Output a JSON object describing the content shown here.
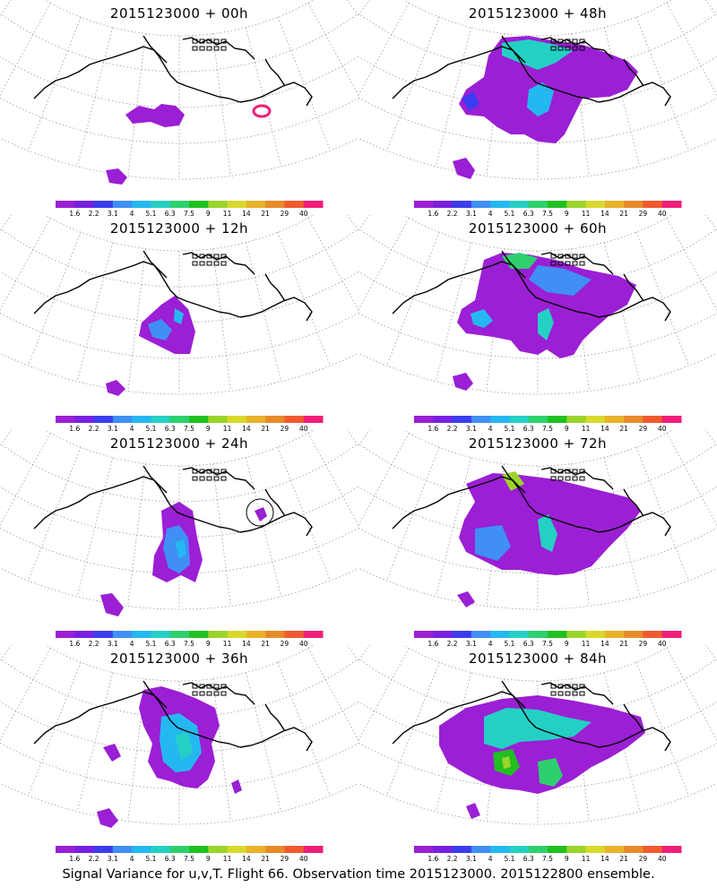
{
  "panels": [
    {
      "title": "2015123000 + 00h"
    },
    {
      "title": "2015123000 + 48h"
    },
    {
      "title": "2015123000 + 12h"
    },
    {
      "title": "2015123000 + 60h"
    },
    {
      "title": "2015123000 + 24h"
    },
    {
      "title": "2015123000 + 72h"
    },
    {
      "title": "2015123000 + 36h"
    },
    {
      "title": "2015123000 + 84h"
    }
  ],
  "colorbar": {
    "labels": [
      "1.6",
      "2.2",
      "3.1",
      "4",
      "5.1",
      "6.3",
      "7.5",
      "9",
      "11",
      "14",
      "21",
      "29",
      "40"
    ],
    "colors": [
      "#9b1fd4",
      "#7820e0",
      "#3c3cf0",
      "#3f8ff5",
      "#25b8f0",
      "#24d0c4",
      "#2ed06e",
      "#20c020",
      "#9ad42c",
      "#d8d82c",
      "#e8b22a",
      "#e88a2a",
      "#f05a30",
      "#f01e78"
    ]
  },
  "footer": "Signal Variance for u,v,T. Flight 66. Observation time 2015123000. 2015122800 ensemble."
}
